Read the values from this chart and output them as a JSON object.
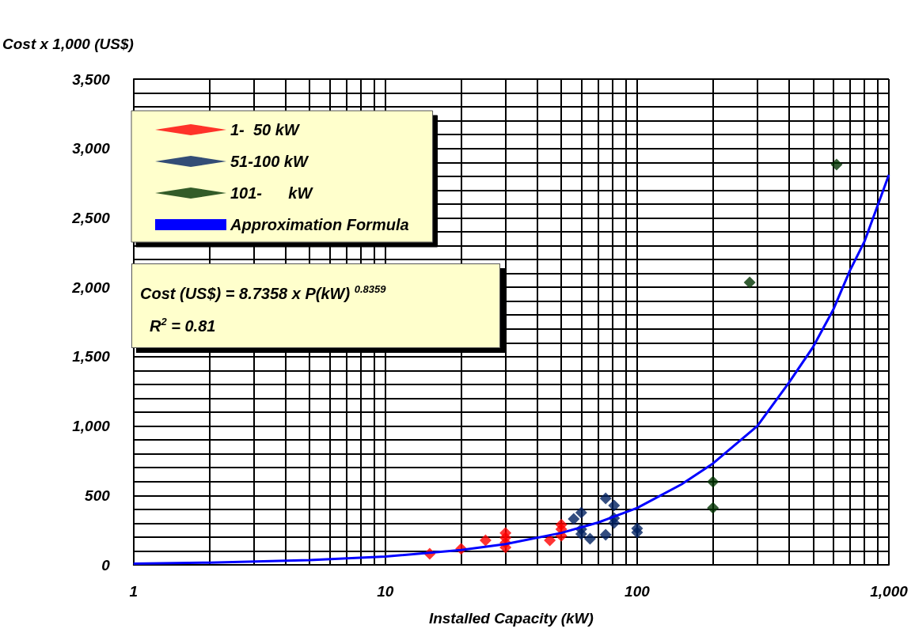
{
  "chart_data": {
    "type": "scatter",
    "xlabel": "Installed Capacity (kW)",
    "ylabel": "Cost x 1,000 (US$)",
    "log": "x",
    "xlim": [
      1,
      1000
    ],
    "xticks": [
      1,
      10,
      100,
      {
        "value": 1000,
        "label": "1,000"
      }
    ],
    "ylim": [
      0,
      3500
    ],
    "yticks": [
      0,
      500,
      {
        "value": 1000,
        "label": "1,000"
      },
      {
        "value": 1500,
        "label": "1,500"
      },
      {
        "value": 2000,
        "label": "2,000"
      },
      {
        "value": 2500,
        "label": "2,500"
      },
      {
        "value": 3000,
        "label": "3,000"
      },
      {
        "value": 3500,
        "label": "3,500"
      }
    ],
    "grid": true,
    "legend": "top left",
    "marker": "diamond",
    "series": [
      {
        "name": "1-  50 kW",
        "color": "#ff0000",
        "x": [
          15,
          20,
          25,
          30,
          30,
          30,
          30,
          45,
          50,
          50,
          50
        ],
        "values": [
          80,
          115,
          177,
          230,
          195,
          160,
          125,
          177,
          290,
          256,
          210
        ]
      },
      {
        "name": "51-100 kW",
        "color": "#002060",
        "x": [
          56,
          60,
          60,
          60,
          65,
          75,
          75,
          81,
          81,
          81,
          100,
          100
        ],
        "values": [
          330,
          376,
          256,
          222,
          188,
          479,
          217,
          428,
          336,
          302,
          262,
          234
        ]
      },
      {
        "name": "101-      kW",
        "color": "#003300",
        "x": [
          200,
          200,
          280,
          620
        ],
        "values": [
          598,
          410,
          2035,
          2884
        ]
      },
      {
        "name": "Approximation Formula",
        "type": "line",
        "color": "#0000ff",
        "marker": "none",
        "x": [
          1,
          2,
          5,
          10,
          20,
          30,
          50,
          70,
          100,
          150,
          200,
          300,
          400,
          500,
          600,
          700,
          800,
          1000
        ],
        "values": [
          9,
          16,
          34,
          60,
          107,
          150,
          230,
          305,
          410,
          580,
          730,
          1000,
          1310,
          1570,
          1835,
          2120,
          2330,
          2810
        ]
      }
    ],
    "annotations": [
      "Cost (US$) = 8.7358 x P(kW) $^{0.8359}$",
      "R$^{2}$ = 0.81"
    ]
  }
}
